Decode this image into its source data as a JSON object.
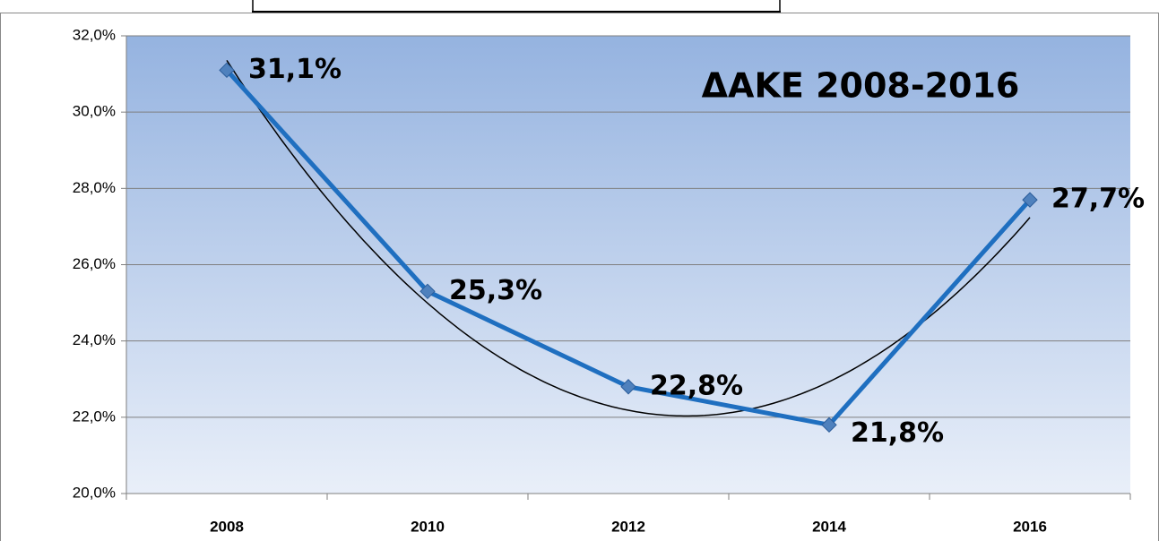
{
  "chart_data": {
    "type": "line",
    "title": "ΔΑΚΕ 2008-2016",
    "categories": [
      "2008",
      "2010",
      "2012",
      "2014",
      "2016"
    ],
    "series": [
      {
        "color": "#1f6fc0",
        "marker_color": "#4f81bd",
        "values": [
          31.1,
          25.3,
          22.8,
          21.8,
          27.7
        ],
        "value_labels": [
          "31,1%",
          "25,3%",
          "22,8%",
          "21,8%",
          "27,7%"
        ]
      }
    ],
    "trendline": {
      "type": "polynomial",
      "order": 2,
      "color": "#000000"
    },
    "ylim": [
      20,
      32
    ],
    "yticks": [
      {
        "value": 20,
        "label": "20,0%"
      },
      {
        "value": 22,
        "label": "22,0%"
      },
      {
        "value": 24,
        "label": "24,0%"
      },
      {
        "value": 26,
        "label": "26,0%"
      },
      {
        "value": 28,
        "label": "28,0%"
      },
      {
        "value": 30,
        "label": "30,0%"
      },
      {
        "value": 32,
        "label": "32,0%"
      }
    ],
    "grid": true
  }
}
